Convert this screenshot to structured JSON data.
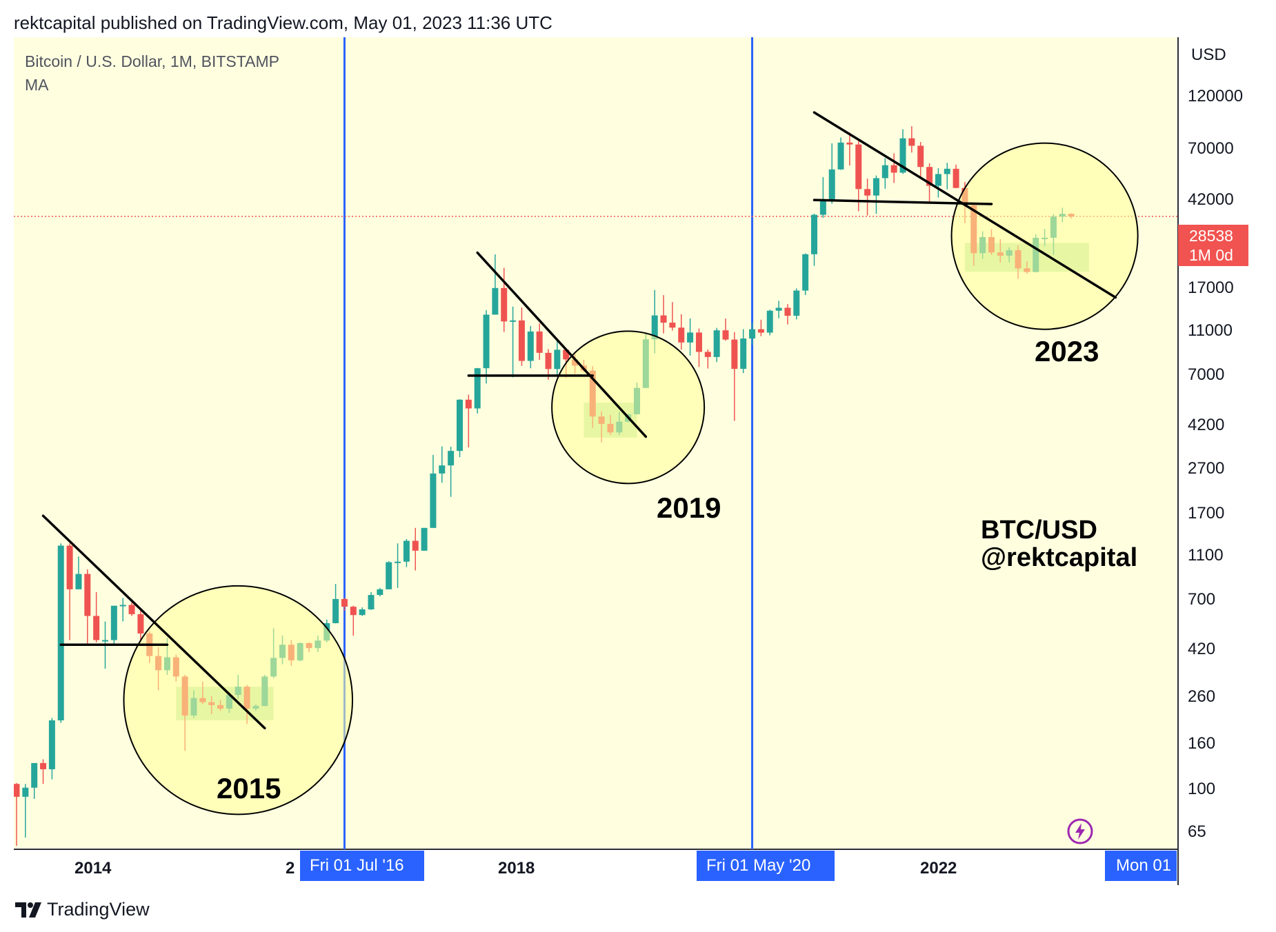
{
  "header": {
    "published_text": "rektcapital published on TradingView.com, May 01, 2023 11:36 UTC"
  },
  "legend": {
    "symbol": "Bitcoin / U.S. Dollar, 1M, BITSTAMP",
    "indicator": "MA"
  },
  "price_scale": {
    "currency": "USD",
    "ticks": [
      "120000",
      "70000",
      "42000",
      "28538",
      "17000",
      "11000",
      "7000",
      "4200",
      "2700",
      "1700",
      "1100",
      "700",
      "420",
      "260",
      "160",
      "100",
      "65"
    ],
    "current_price": "28538",
    "current_period": "1M 0d"
  },
  "time_scale": {
    "ticks": [
      "2014",
      "2",
      "2018",
      "2022"
    ],
    "markers": [
      "Fri 01 Jul '16",
      "Fri 01 May '20",
      "Mon 01"
    ]
  },
  "annotations": {
    "years": [
      "2015",
      "2019",
      "2023"
    ],
    "brand_line1": "BTC/USD",
    "brand_line2": "@rektcapital"
  },
  "footer": {
    "logo_text": "TradingView"
  },
  "colors": {
    "background": "#ffffe0",
    "up": "#26a69a",
    "down": "#ef5350",
    "halving_line": "#2962ff",
    "trendline": "#000000",
    "zone": "#b4e19b",
    "circle_fill": "#ffff99",
    "price_line": "#ef5350"
  },
  "chart_data": {
    "type": "candlestick",
    "title": "Bitcoin / U.S. Dollar, 1M, BITSTAMP",
    "ylabel": "USD",
    "y_scale": "log",
    "ylim": [
      55,
      180000
    ],
    "x_range": [
      "2013-06",
      "2023-11"
    ],
    "current_price": 28538,
    "vertical_lines": [
      "2016-07-01",
      "2020-05-01"
    ],
    "candles": [
      [
        "2013-06",
        110,
        111,
        60,
        97
      ],
      [
        "2013-07",
        97,
        110,
        65,
        106
      ],
      [
        "2013-08",
        106,
        130,
        95,
        135
      ],
      [
        "2013-09",
        135,
        140,
        110,
        127
      ],
      [
        "2013-10",
        127,
        210,
        115,
        205
      ],
      [
        "2013-11",
        205,
        1160,
        200,
        1135
      ],
      [
        "2013-12",
        1135,
        1160,
        450,
        740
      ],
      [
        "2014-01",
        740,
        1020,
        740,
        860
      ],
      [
        "2014-02",
        860,
        900,
        430,
        570
      ],
      [
        "2014-03",
        570,
        720,
        440,
        450
      ],
      [
        "2014-04",
        450,
        540,
        340,
        450
      ],
      [
        "2014-05",
        450,
        630,
        430,
        630
      ],
      [
        "2014-06",
        630,
        680,
        540,
        635
      ],
      [
        "2014-07",
        635,
        650,
        570,
        580
      ],
      [
        "2014-08",
        580,
        600,
        440,
        480
      ],
      [
        "2014-09",
        480,
        490,
        360,
        385
      ],
      [
        "2014-10",
        385,
        420,
        275,
        335
      ],
      [
        "2014-11",
        335,
        460,
        320,
        380
      ],
      [
        "2014-12",
        380,
        390,
        300,
        315
      ],
      [
        "2015-01",
        315,
        320,
        152,
        215
      ],
      [
        "2015-02",
        215,
        275,
        210,
        255
      ],
      [
        "2015-03",
        255,
        300,
        240,
        245
      ],
      [
        "2015-04",
        245,
        260,
        218,
        238
      ],
      [
        "2015-05",
        238,
        250,
        225,
        230
      ],
      [
        "2015-06",
        230,
        270,
        220,
        263
      ],
      [
        "2015-07",
        263,
        320,
        253,
        285
      ],
      [
        "2015-08",
        285,
        290,
        198,
        230
      ],
      [
        "2015-09",
        230,
        240,
        225,
        236
      ],
      [
        "2015-10",
        236,
        320,
        236,
        315
      ],
      [
        "2015-11",
        315,
        505,
        310,
        378
      ],
      [
        "2015-12",
        378,
        470,
        355,
        430
      ],
      [
        "2016-01",
        430,
        450,
        350,
        369
      ],
      [
        "2016-02",
        369,
        440,
        365,
        437
      ],
      [
        "2016-03",
        437,
        440,
        400,
        416
      ],
      [
        "2016-04",
        416,
        470,
        400,
        448
      ],
      [
        "2016-05",
        448,
        550,
        440,
        531
      ],
      [
        "2016-06",
        531,
        780,
        530,
        673
      ],
      [
        "2016-07",
        673,
        680,
        600,
        624
      ],
      [
        "2016-08",
        624,
        630,
        470,
        575
      ],
      [
        "2016-09",
        575,
        620,
        570,
        608
      ],
      [
        "2016-10",
        608,
        720,
        605,
        700
      ],
      [
        "2016-11",
        700,
        750,
        690,
        740
      ],
      [
        "2016-12",
        740,
        975,
        740,
        965
      ],
      [
        "2017-01",
        965,
        1160,
        750,
        970
      ],
      [
        "2017-02",
        970,
        1210,
        920,
        1190
      ],
      [
        "2017-03",
        1190,
        1350,
        890,
        1080
      ],
      [
        "2017-04",
        1080,
        1350,
        1080,
        1350
      ],
      [
        "2017-05",
        1350,
        2760,
        1350,
        2300
      ],
      [
        "2017-06",
        2300,
        3000,
        2100,
        2490
      ],
      [
        "2017-07",
        2490,
        2990,
        1830,
        2870
      ],
      [
        "2017-08",
        2870,
        4760,
        2700,
        4740
      ],
      [
        "2017-09",
        4740,
        4980,
        2970,
        4350
      ],
      [
        "2017-10",
        4350,
        6470,
        4140,
        6450
      ],
      [
        "2017-11",
        6450,
        11400,
        5550,
        10900
      ],
      [
        "2017-12",
        10900,
        19670,
        10900,
        14150
      ],
      [
        "2018-01",
        14150,
        17250,
        9200,
        10200
      ],
      [
        "2018-02",
        10200,
        11800,
        5900,
        10300
      ],
      [
        "2018-03",
        10300,
        11700,
        6600,
        6930
      ],
      [
        "2018-04",
        6930,
        9760,
        6450,
        9240
      ],
      [
        "2018-05",
        9240,
        10000,
        7000,
        7500
      ],
      [
        "2018-06",
        7500,
        7780,
        5760,
        6400
      ],
      [
        "2018-07",
        6400,
        8500,
        6000,
        7730
      ],
      [
        "2018-08",
        7730,
        7770,
        5880,
        7030
      ],
      [
        "2018-09",
        7030,
        7400,
        6100,
        6620
      ],
      [
        "2018-10",
        6620,
        7000,
        6200,
        6300
      ],
      [
        "2018-11",
        6300,
        6580,
        3600,
        4020
      ],
      [
        "2018-12",
        4020,
        4230,
        3120,
        3740
      ],
      [
        "2019-01",
        3740,
        4080,
        3360,
        3440
      ],
      [
        "2019-02",
        3440,
        4200,
        3360,
        3820
      ],
      [
        "2019-03",
        3820,
        4130,
        3800,
        4110
      ],
      [
        "2019-04",
        4110,
        5600,
        4100,
        5320
      ],
      [
        "2019-05",
        5320,
        9100,
        5300,
        8560
      ],
      [
        "2019-06",
        8560,
        13880,
        7450,
        10820
      ],
      [
        "2019-07",
        10820,
        13200,
        9070,
        10080
      ],
      [
        "2019-08",
        10080,
        12330,
        9330,
        9600
      ],
      [
        "2019-09",
        9600,
        10950,
        7730,
        8300
      ],
      [
        "2019-10",
        8300,
        10500,
        7300,
        9150
      ],
      [
        "2019-11",
        9150,
        9520,
        6530,
        7570
      ],
      [
        "2019-12",
        7570,
        7750,
        6430,
        7200
      ],
      [
        "2020-01",
        7200,
        9580,
        6850,
        9350
      ],
      [
        "2020-02",
        9350,
        10500,
        8450,
        8540
      ],
      [
        "2020-03",
        8540,
        9190,
        3850,
        6410
      ],
      [
        "2020-04",
        6410,
        9460,
        6150,
        8630
      ],
      [
        "2020-05",
        8630,
        10080,
        8110,
        9450
      ],
      [
        "2020-06",
        9450,
        10380,
        8830,
        9140
      ],
      [
        "2020-07",
        9140,
        11440,
        8900,
        11330
      ],
      [
        "2020-08",
        11330,
        12480,
        10520,
        11660
      ],
      [
        "2020-09",
        11660,
        12080,
        9900,
        10780
      ],
      [
        "2020-10",
        10780,
        14100,
        10400,
        13800
      ],
      [
        "2020-11",
        13800,
        19880,
        13200,
        19700
      ],
      [
        "2020-12",
        19700,
        29300,
        17570,
        28990
      ],
      [
        "2021-01",
        28990,
        41950,
        28130,
        33100
      ],
      [
        "2021-02",
        33100,
        58350,
        32300,
        45200
      ],
      [
        "2021-03",
        45200,
        61780,
        45000,
        58800
      ],
      [
        "2021-04",
        58800,
        64890,
        47000,
        57700
      ],
      [
        "2021-05",
        57700,
        59590,
        30000,
        37300
      ],
      [
        "2021-06",
        37300,
        41330,
        28800,
        35000
      ],
      [
        "2021-07",
        35000,
        42600,
        29300,
        41500
      ],
      [
        "2021-08",
        41500,
        50500,
        37400,
        47100
      ],
      [
        "2021-09",
        47100,
        52920,
        39600,
        43800
      ],
      [
        "2021-10",
        43800,
        67000,
        43300,
        61300
      ],
      [
        "2021-11",
        61300,
        69000,
        53300,
        57000
      ],
      [
        "2021-12",
        57000,
        59100,
        42000,
        46300
      ],
      [
        "2022-01",
        46300,
        48000,
        32900,
        38500
      ],
      [
        "2022-02",
        38500,
        45800,
        34300,
        43200
      ],
      [
        "2022-03",
        43200,
        48200,
        37200,
        45500
      ],
      [
        "2022-04",
        45500,
        47400,
        37600,
        37700
      ],
      [
        "2022-05",
        37700,
        40000,
        26700,
        31800
      ],
      [
        "2022-06",
        31800,
        31990,
        17600,
        19900
      ],
      [
        "2022-07",
        19900,
        24650,
        18800,
        23300
      ],
      [
        "2022-08",
        23300,
        25200,
        19600,
        20050
      ],
      [
        "2022-09",
        20050,
        22800,
        18150,
        19430
      ],
      [
        "2022-10",
        19430,
        21090,
        18180,
        20490
      ],
      [
        "2022-11",
        20490,
        21480,
        15500,
        17150
      ],
      [
        "2022-12",
        17150,
        18390,
        16260,
        16550
      ],
      [
        "2023-01",
        16550,
        23950,
        16500,
        23130
      ],
      [
        "2023-02",
        23130,
        25250,
        21350,
        23150
      ],
      [
        "2023-03",
        23150,
        29200,
        19570,
        28480
      ],
      [
        "2023-04",
        28480,
        31050,
        26940,
        29250
      ],
      [
        "2023-05",
        29250,
        29400,
        28000,
        28538
      ]
    ],
    "trendlines": [
      {
        "from": [
          "2013-09",
          1520
        ],
        "to": [
          "2015-10",
          190
        ]
      },
      {
        "from": [
          "2013-11",
          430
        ],
        "to": [
          "2014-11",
          430
        ]
      },
      {
        "from": [
          "2017-10",
          20000
        ],
        "to": [
          "2019-05",
          3300
        ]
      },
      {
        "from": [
          "2017-09",
          6000
        ],
        "to": [
          "2018-11",
          6000
        ]
      },
      {
        "from": [
          "2020-12",
          79000
        ],
        "to": [
          "2023-10",
          12900
        ]
      },
      {
        "from": [
          "2020-12",
          33500
        ],
        "to": [
          "2022-08",
          32200
        ]
      }
    ],
    "zones": [
      {
        "from": [
          "2014-12",
          285
        ],
        "to": [
          "2015-11",
          205
        ]
      },
      {
        "from": [
          "2018-10",
          4600
        ],
        "to": [
          "2019-04",
          3270
        ]
      },
      {
        "from": [
          "2022-05",
          22000
        ],
        "to": [
          "2023-07",
          16600
        ]
      }
    ],
    "circles": [
      {
        "center": [
          "2015-07",
          250
        ],
        "rx": 2.5,
        "ry_log": 0.135
      },
      {
        "center": [
          "2019-03",
          4400
        ],
        "rx": 2.5,
        "ry_log": 0.09
      },
      {
        "center": [
          "2023-02",
          23500
        ],
        "rx": 3.5,
        "ry_log": 0.11
      }
    ]
  }
}
